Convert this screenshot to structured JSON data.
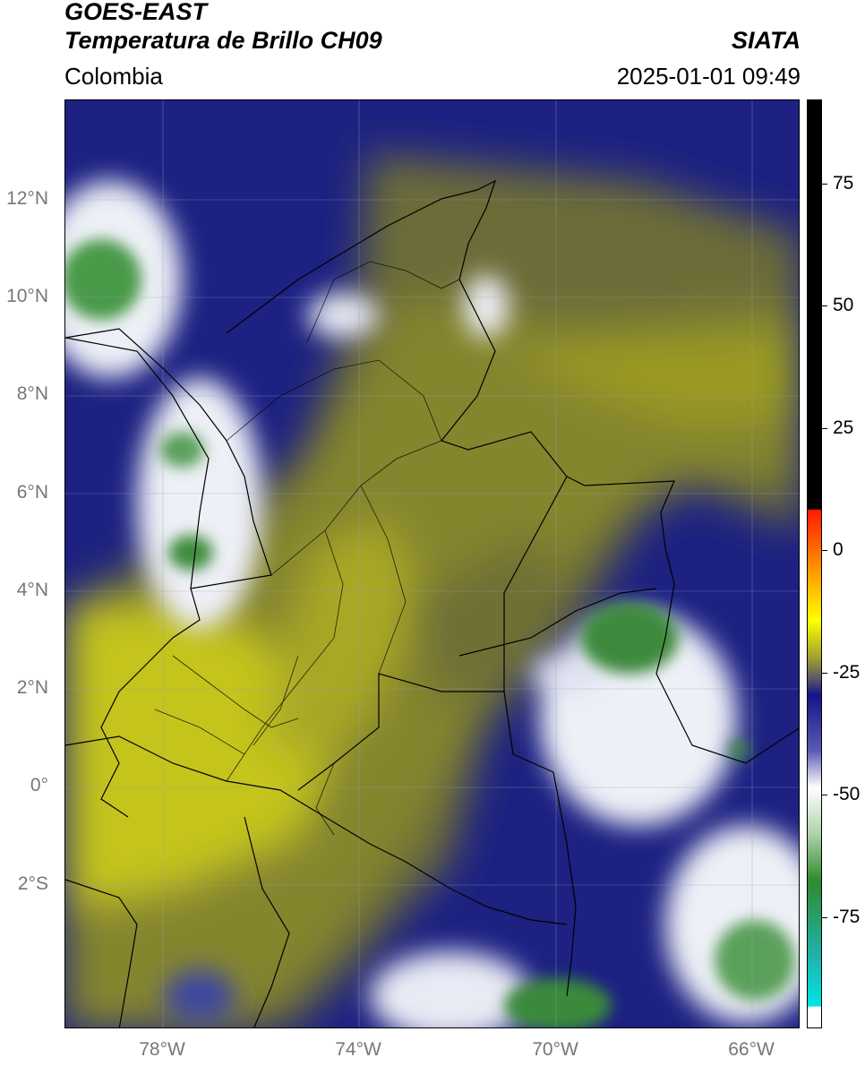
{
  "header": {
    "title_line1": "GOES-EAST",
    "title_line2": "Temperatura de Brillo CH09",
    "brand": "SIATA",
    "region": "Colombia",
    "timestamp": "2025-01-01 09:49"
  },
  "map": {
    "lat_labels": [
      "12°N",
      "10°N",
      "8°N",
      "6°N",
      "4°N",
      "2°N",
      "0°",
      "2°S"
    ],
    "lon_labels": [
      "78°W",
      "74°W",
      "70°W",
      "66°W"
    ],
    "colors": {
      "background_blue": "#1a1f8a",
      "olive": "#8a8a2a",
      "yellow": "#c8c81a",
      "white_cloud": "#f0f0f5",
      "green_cloud": "#3a8a3a",
      "border": "#000000"
    }
  },
  "colorbar": {
    "labels": [
      "75",
      "50",
      "25",
      "0",
      "-25",
      "-50",
      "-75"
    ],
    "colors": [
      "#000000",
      "#ff0000",
      "#ffa500",
      "#ffff00",
      "#8a8a2a",
      "#1a1f8a",
      "#ffffff",
      "#2e8b2e",
      "#00e5e5",
      "#ffffff"
    ]
  }
}
